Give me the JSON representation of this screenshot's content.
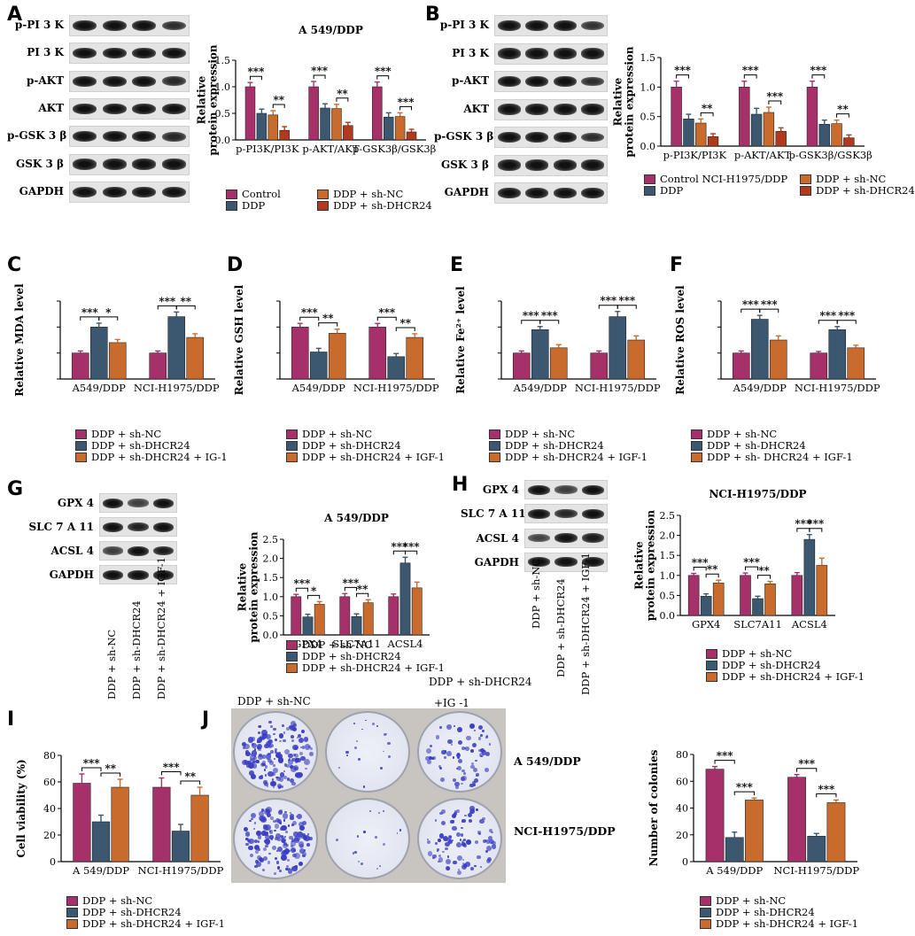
{
  "colors": {
    "control": "#a6316a",
    "ddp": "#3b5870",
    "nc": "#c96b2c",
    "shd": "#b03a1e",
    "text": "#000000"
  },
  "labels": {
    "A": "A",
    "B": "B",
    "C": "C",
    "D": "D",
    "E": "E",
    "F": "F",
    "G": "G",
    "H": "H",
    "I": "I",
    "J": "J"
  },
  "blotA": [
    "p-PI 3 K",
    "PI 3 K",
    "p-AKT",
    "AKT",
    "p-GSK 3 β",
    "GSK 3 β",
    "GAPDH"
  ],
  "blotB": [
    "p-PI 3 K",
    "PI 3 K",
    "p-AKT",
    "AKT",
    "p-GSK 3 β",
    "GSK 3 β",
    "GAPDH"
  ],
  "blotG": [
    "GPX 4",
    "SLC 7 A 11",
    "ACSL 4",
    "GAPDH"
  ],
  "blotH": [
    "GPX 4",
    "SLC 7 A 11",
    "ACSL 4",
    "GAPDH"
  ],
  "laneLabelsG": [
    "DDP + sh-NC",
    "DDP + sh-DHCR24",
    "DDP + sh-DHCR24 + IGF-1"
  ],
  "laneLabelsH": [
    "DDP + sh-NC",
    "DDP + sh-DHCR24",
    "DDP + sh-DHCR24 + IGF-1"
  ],
  "legendA": [
    "Control",
    "DDP",
    "DDP + sh-NC",
    "DDP + sh-DHCR24"
  ],
  "legendB": [
    "Control NCI-H1975/DDP",
    "DDP",
    "DDP + sh-NC",
    "DDP + sh-DHCR24"
  ],
  "legendC": [
    "DDP + sh-NC",
    "DDP + sh-DHCR24",
    "DDP + sh-DHCR24 + IG-1"
  ],
  "legendD": [
    "DDP + sh-NC",
    "DDP + sh-DHCR24",
    "DDP + sh-DHCR24 + IGF-1"
  ],
  "legendE": [
    "DDP + sh-NC",
    "DDP + sh-DHCR24",
    "DDP + sh-DHCR24 + IGF-1"
  ],
  "legendF": [
    "DDP + sh-NC",
    "DDP + sh-DHCR24",
    "DDP + sh- DHCR24 + IGF-1"
  ],
  "legendG": [
    "DDP + sh-NC",
    "DDP + sh-DHCR24",
    "DDP + sh-DHCR24 + IGF-1"
  ],
  "legendH": [
    "DDP + sh-NC",
    "DDP + sh-DHCR24",
    "DDP + sh-DHCR24 + IGF-1"
  ],
  "legendI": [
    "DDP + sh-NC",
    "DDP + sh-DHCR24",
    "DDP + sh-DHCR24 + IGF-1"
  ],
  "legendJ": [
    "DDP + sh-NC",
    "DDP + sh-DHCR24",
    "DDP + sh-DHCR24 + IGF-1"
  ],
  "panelJ": {
    "col1": "DDP + sh-NC",
    "col23": "DDP + sh-DHCR24",
    "col3": "+IG -1",
    "row1": "A 549/DDP",
    "row2": "NCI-H1975/DDP"
  },
  "chart_data": [
    {
      "id": "A",
      "type": "bar",
      "title": "A 549/DDP",
      "ylabel": "Relative\nprotein expression",
      "ylim": [
        0,
        1.5
      ],
      "yticks": [
        0,
        0.5,
        1.0,
        1.5
      ],
      "ytickLabels": [
        "0.0",
        "0.5",
        "1.0",
        "1.5"
      ],
      "categories": [
        "p-PI3K/PI3K",
        "p-AKT/AKT",
        "p-GSK3β/GSK3β"
      ],
      "series": [
        {
          "name": "Control",
          "values": [
            1.0,
            1.0,
            1.0
          ],
          "errors": [
            0.08,
            0.1,
            0.09
          ]
        },
        {
          "name": "DDP",
          "values": [
            0.5,
            0.6,
            0.43
          ],
          "errors": [
            0.08,
            0.08,
            0.08
          ]
        },
        {
          "name": "DDP + sh-NC",
          "values": [
            0.47,
            0.59,
            0.44
          ],
          "errors": [
            0.08,
            0.08,
            0.07
          ]
        },
        {
          "name": "DDP + sh-DHCR24",
          "values": [
            0.18,
            0.27,
            0.15
          ],
          "errors": [
            0.07,
            0.06,
            0.05
          ]
        }
      ],
      "sig": [
        {
          "c": 0,
          "a": 0,
          "b": 1,
          "t": "***"
        },
        {
          "c": 0,
          "a": 2,
          "b": 3,
          "t": "**"
        },
        {
          "c": 1,
          "a": 0,
          "b": 1,
          "t": "***"
        },
        {
          "c": 1,
          "a": 2,
          "b": 3,
          "t": "**"
        },
        {
          "c": 2,
          "a": 0,
          "b": 1,
          "t": "***"
        },
        {
          "c": 2,
          "a": 2,
          "b": 3,
          "t": "***"
        }
      ]
    },
    {
      "id": "B",
      "type": "bar",
      "title": "",
      "ylabel": "Relative\nprotein expression",
      "ylim": [
        0,
        1.5
      ],
      "yticks": [
        0,
        0.5,
        1.0,
        1.5
      ],
      "ytickLabels": [
        "0.0",
        "0.5",
        "1.0",
        "1.5"
      ],
      "categories": [
        "p-PI3K/PI3K",
        "p-AKT/AKT",
        "p-GSK3β/GSK3β"
      ],
      "series": [
        {
          "name": "Control NCI-H1975/DDP",
          "values": [
            1.0,
            1.0,
            1.0
          ],
          "errors": [
            0.1,
            0.1,
            0.1
          ]
        },
        {
          "name": "DDP",
          "values": [
            0.46,
            0.54,
            0.37
          ],
          "errors": [
            0.08,
            0.1,
            0.07
          ]
        },
        {
          "name": "DDP + sh-NC",
          "values": [
            0.39,
            0.57,
            0.38
          ],
          "errors": [
            0.07,
            0.09,
            0.06
          ]
        },
        {
          "name": "DDP + sh-DHCR24",
          "values": [
            0.16,
            0.25,
            0.14
          ],
          "errors": [
            0.05,
            0.06,
            0.05
          ]
        }
      ],
      "sig": [
        {
          "c": 0,
          "a": 0,
          "b": 1,
          "t": "***"
        },
        {
          "c": 0,
          "a": 2,
          "b": 3,
          "t": "**"
        },
        {
          "c": 1,
          "a": 0,
          "b": 1,
          "t": "***"
        },
        {
          "c": 1,
          "a": 2,
          "b": 3,
          "t": "***"
        },
        {
          "c": 2,
          "a": 0,
          "b": 1,
          "t": "***"
        },
        {
          "c": 2,
          "a": 2,
          "b": 3,
          "t": "**"
        }
      ]
    },
    {
      "id": "C",
      "type": "bar",
      "title": "",
      "ylabel": "Relative MDA level",
      "ylim": [
        0,
        3
      ],
      "yticks": [
        0,
        1,
        2,
        3
      ],
      "ytickLabels": [
        "",
        "",
        "",
        ""
      ],
      "categories": [
        "A549/DDP",
        "NCI-H1975/DDP"
      ],
      "series": [
        {
          "name": "DDP + sh-NC",
          "values": [
            1.0,
            1.0
          ],
          "errors": [
            0.08,
            0.08
          ]
        },
        {
          "name": "DDP + sh-DHCR24",
          "values": [
            2.0,
            2.4
          ],
          "errors": [
            0.15,
            0.18
          ]
        },
        {
          "name": "DDP + sh-DHCR24 + IG-1",
          "values": [
            1.4,
            1.6
          ],
          "errors": [
            0.12,
            0.14
          ]
        }
      ],
      "sig": [
        {
          "c": 0,
          "a": 0,
          "b": 1,
          "t": "***"
        },
        {
          "c": 0,
          "a": 1,
          "b": 2,
          "t": "*"
        },
        {
          "c": 1,
          "a": 0,
          "b": 1,
          "t": "***"
        },
        {
          "c": 1,
          "a": 1,
          "b": 2,
          "t": "**"
        }
      ]
    },
    {
      "id": "D",
      "type": "bar",
      "title": "",
      "ylabel": "Relative GSH level",
      "ylim": [
        0,
        1.5
      ],
      "yticks": [
        0,
        0.5,
        1.0,
        1.5
      ],
      "ytickLabels": [
        "",
        "",
        "",
        ""
      ],
      "categories": [
        "A549/DDP",
        "NCI-H1975/DDP"
      ],
      "series": [
        {
          "name": "DDP + sh-NC",
          "values": [
            1.0,
            1.0
          ],
          "errors": [
            0.07,
            0.07
          ]
        },
        {
          "name": "DDP + sh-DHCR24",
          "values": [
            0.52,
            0.43
          ],
          "errors": [
            0.07,
            0.06
          ]
        },
        {
          "name": "DDP + sh-DHCR24 + IGF-1",
          "values": [
            0.88,
            0.8
          ],
          "errors": [
            0.08,
            0.07
          ]
        }
      ],
      "sig": [
        {
          "c": 0,
          "a": 0,
          "b": 1,
          "t": "***"
        },
        {
          "c": 0,
          "a": 1,
          "b": 2,
          "t": "**"
        },
        {
          "c": 1,
          "a": 0,
          "b": 1,
          "t": "***"
        },
        {
          "c": 1,
          "a": 1,
          "b": 2,
          "t": "**"
        }
      ]
    },
    {
      "id": "E",
      "type": "bar",
      "title": "",
      "ylabel": "Relative Fe²⁺ level",
      "ylim": [
        0,
        3
      ],
      "yticks": [
        0,
        1,
        2,
        3
      ],
      "ytickLabels": [
        "",
        "",
        "",
        ""
      ],
      "categories": [
        "A549/DDP",
        "NCI-H1975/DDP"
      ],
      "series": [
        {
          "name": "DDP + sh-NC",
          "values": [
            1.0,
            1.0
          ],
          "errors": [
            0.08,
            0.08
          ]
        },
        {
          "name": "DDP + sh-DHCR24",
          "values": [
            1.9,
            2.4
          ],
          "errors": [
            0.12,
            0.2
          ]
        },
        {
          "name": "DDP + sh-DHCR24 + IGF-1",
          "values": [
            1.2,
            1.5
          ],
          "errors": [
            0.12,
            0.16
          ]
        }
      ],
      "sig": [
        {
          "c": 0,
          "a": 0,
          "b": 1,
          "t": "***"
        },
        {
          "c": 0,
          "a": 1,
          "b": 2,
          "t": "***"
        },
        {
          "c": 1,
          "a": 0,
          "b": 1,
          "t": "***"
        },
        {
          "c": 1,
          "a": 1,
          "b": 2,
          "t": "***"
        }
      ]
    },
    {
      "id": "F",
      "type": "bar",
      "title": "",
      "ylabel": "Relative ROS level",
      "ylim": [
        0,
        3
      ],
      "yticks": [
        0,
        1,
        2,
        3
      ],
      "ytickLabels": [
        "",
        "",
        "",
        ""
      ],
      "categories": [
        "A549/DDP",
        "NCI-H1975/DDP"
      ],
      "series": [
        {
          "name": "DDP + sh-NC",
          "values": [
            1.0,
            1.0
          ],
          "errors": [
            0.08,
            0.06
          ]
        },
        {
          "name": "DDP + sh-DHCR24",
          "values": [
            2.3,
            1.9
          ],
          "errors": [
            0.15,
            0.12
          ]
        },
        {
          "name": "DDP + sh- DHCR24 + IGF-1",
          "values": [
            1.5,
            1.2
          ],
          "errors": [
            0.16,
            0.1
          ]
        }
      ],
      "sig": [
        {
          "c": 0,
          "a": 0,
          "b": 1,
          "t": "***"
        },
        {
          "c": 0,
          "a": 1,
          "b": 2,
          "t": "***"
        },
        {
          "c": 1,
          "a": 0,
          "b": 1,
          "t": "***"
        },
        {
          "c": 1,
          "a": 1,
          "b": 2,
          "t": "***"
        }
      ]
    },
    {
      "id": "G",
      "type": "bar",
      "title": "A 549/DDP",
      "ylabel": "Relative\nprotein expression",
      "ylim": [
        0,
        2.5
      ],
      "yticks": [
        0,
        0.5,
        1.0,
        1.5,
        2.0,
        2.5
      ],
      "ytickLabels": [
        "0.0",
        "0.5",
        "1.0",
        "1.5",
        "2.0",
        "2.5"
      ],
      "categories": [
        "GPX4",
        "SLC7A11",
        "ACSL4"
      ],
      "series": [
        {
          "name": "DDP + sh-NC",
          "values": [
            1.0,
            1.0,
            1.0
          ],
          "errors": [
            0.06,
            0.08,
            0.07
          ]
        },
        {
          "name": "DDP + sh-DHCR24",
          "values": [
            0.47,
            0.48,
            1.88
          ],
          "errors": [
            0.07,
            0.07,
            0.15
          ]
        },
        {
          "name": "DDP + sh-DHCR24 + IGF-1",
          "values": [
            0.8,
            0.84,
            1.23
          ],
          "errors": [
            0.07,
            0.08,
            0.15
          ]
        }
      ],
      "sig": [
        {
          "c": 0,
          "a": 0,
          "b": 1,
          "t": "***"
        },
        {
          "c": 0,
          "a": 1,
          "b": 2,
          "t": "*"
        },
        {
          "c": 1,
          "a": 0,
          "b": 1,
          "t": "***"
        },
        {
          "c": 1,
          "a": 1,
          "b": 2,
          "t": "**"
        },
        {
          "c": 2,
          "a": 0,
          "b": 1,
          "t": "***"
        },
        {
          "c": 2,
          "a": 1,
          "b": 2,
          "t": "***"
        }
      ]
    },
    {
      "id": "H",
      "type": "bar",
      "title": "NCI-H1975/DDP",
      "ylabel": "Relative\nprotein expression",
      "ylim": [
        0,
        2.5
      ],
      "yticks": [
        0,
        0.5,
        1.0,
        1.5,
        2.0,
        2.5
      ],
      "ytickLabels": [
        "0.0",
        "0.5",
        "1.0",
        "1.5",
        "2.0",
        "2.5"
      ],
      "categories": [
        "GPX4",
        "SLC7A11",
        "ACSL4"
      ],
      "series": [
        {
          "name": "DDP + sh-NC",
          "values": [
            1.0,
            1.0,
            1.0
          ],
          "errors": [
            0.05,
            0.06,
            0.07
          ]
        },
        {
          "name": "DDP + sh-DHCR24",
          "values": [
            0.48,
            0.42,
            1.9
          ],
          "errors": [
            0.06,
            0.06,
            0.12
          ]
        },
        {
          "name": "DDP + sh-DHCR24 + IGF-1",
          "values": [
            0.81,
            0.79,
            1.25
          ],
          "errors": [
            0.07,
            0.06,
            0.18
          ]
        }
      ],
      "sig": [
        {
          "c": 0,
          "a": 0,
          "b": 1,
          "t": "***"
        },
        {
          "c": 0,
          "a": 1,
          "b": 2,
          "t": "**"
        },
        {
          "c": 1,
          "a": 0,
          "b": 1,
          "t": "***"
        },
        {
          "c": 1,
          "a": 1,
          "b": 2,
          "t": "**"
        },
        {
          "c": 2,
          "a": 0,
          "b": 1,
          "t": "***"
        },
        {
          "c": 2,
          "a": 1,
          "b": 2,
          "t": "***"
        }
      ]
    },
    {
      "id": "I",
      "type": "bar",
      "title": "",
      "ylabel": "Cell viability (%)",
      "ylim": [
        0,
        80
      ],
      "yticks": [
        0,
        20,
        40,
        60,
        80
      ],
      "ytickLabels": [
        "0",
        "20",
        "40",
        "60",
        "80"
      ],
      "categories": [
        "A 549/DDP",
        "NCI-H1975/DDP"
      ],
      "series": [
        {
          "name": "DDP + sh-NC",
          "values": [
            59,
            56
          ],
          "errors": [
            7,
            7
          ]
        },
        {
          "name": "DDP + sh-DHCR24",
          "values": [
            30,
            23
          ],
          "errors": [
            5,
            5
          ]
        },
        {
          "name": "DDP + sh-DHCR24 + IGF-1",
          "values": [
            56,
            50
          ],
          "errors": [
            6,
            6
          ]
        }
      ],
      "sig": [
        {
          "c": 0,
          "a": 0,
          "b": 1,
          "t": "***"
        },
        {
          "c": 0,
          "a": 1,
          "b": 2,
          "t": "**"
        },
        {
          "c": 1,
          "a": 0,
          "b": 1,
          "t": "***"
        },
        {
          "c": 1,
          "a": 1,
          "b": 2,
          "t": "**"
        }
      ]
    },
    {
      "id": "J",
      "type": "bar",
      "title": "",
      "ylabel": "Number of colonies",
      "ylim": [
        0,
        80
      ],
      "yticks": [
        0,
        20,
        40,
        60,
        80
      ],
      "ytickLabels": [
        "0",
        "20",
        "40",
        "60",
        "80"
      ],
      "categories": [
        "A 549/DDP",
        "NCI-H1975/DDP"
      ],
      "series": [
        {
          "name": "DDP + sh-NC",
          "values": [
            69,
            63
          ],
          "errors": [
            2,
            2
          ]
        },
        {
          "name": "DDP + sh-DHCR24",
          "values": [
            18,
            19
          ],
          "errors": [
            4,
            2
          ]
        },
        {
          "name": "DDP + sh-DHCR24 + IGF-1",
          "values": [
            46,
            44
          ],
          "errors": [
            1.5,
            2
          ]
        }
      ],
      "sig": [
        {
          "c": 0,
          "a": 0,
          "b": 1,
          "t": "***"
        },
        {
          "c": 0,
          "a": 1,
          "b": 2,
          "t": "***"
        },
        {
          "c": 1,
          "a": 0,
          "b": 1,
          "t": "***"
        },
        {
          "c": 1,
          "a": 1,
          "b": 2,
          "t": "***"
        }
      ]
    }
  ]
}
